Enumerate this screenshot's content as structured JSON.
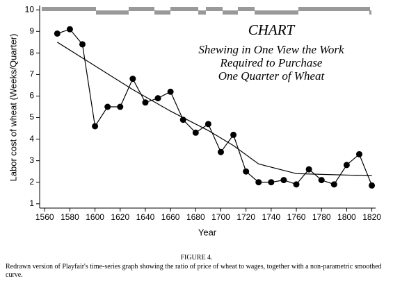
{
  "chart_data": {
    "type": "line",
    "annotations": [
      "CHART",
      "Shewing in One View the Work",
      "Required to Purchase",
      "One Quarter of Wheat"
    ],
    "xlabel": "Year",
    "ylabel": "Labor cost of wheat (Weeks/Quarter)",
    "xlim": [
      1556,
      1823
    ],
    "ylim": [
      0.8,
      10.2
    ],
    "xticks": [
      1560,
      1580,
      1600,
      1620,
      1640,
      1660,
      1680,
      1700,
      1720,
      1740,
      1760,
      1780,
      1800,
      1820
    ],
    "yticks": [
      1,
      2,
      3,
      4,
      5,
      6,
      7,
      8,
      9,
      10
    ],
    "series": [
      {
        "color": "#000000",
        "markers": true,
        "x": [
          1570,
          1580,
          1590,
          1600,
          1610,
          1620,
          1630,
          1640,
          1650,
          1660,
          1670,
          1680,
          1690,
          1700,
          1710,
          1720,
          1730,
          1740,
          1750,
          1760,
          1770,
          1780,
          1790,
          1800,
          1810,
          1820
        ],
        "values": [
          8.9,
          9.1,
          8.4,
          4.6,
          5.5,
          5.5,
          6.8,
          5.7,
          5.9,
          6.2,
          4.9,
          4.3,
          4.7,
          3.4,
          4.2,
          2.5,
          2.0,
          2.0,
          2.1,
          1.9,
          2.6,
          2.1,
          1.9,
          2.8,
          3.3,
          1.85
        ]
      },
      {
        "color": "#000000",
        "markers": false,
        "x": [
          1570,
          1600,
          1630,
          1660,
          1690,
          1710,
          1730,
          1760,
          1790,
          1820
        ],
        "values": [
          8.5,
          7.4,
          6.3,
          5.3,
          4.4,
          3.7,
          2.85,
          2.4,
          2.35,
          2.3
        ]
      }
    ]
  },
  "caption": {
    "label": "FIGURE 4.",
    "text": "Redrawn version of Playfair's time-series graph showing the ratio of price of wheat to wages, together with a non-parametric smoothed curve."
  }
}
